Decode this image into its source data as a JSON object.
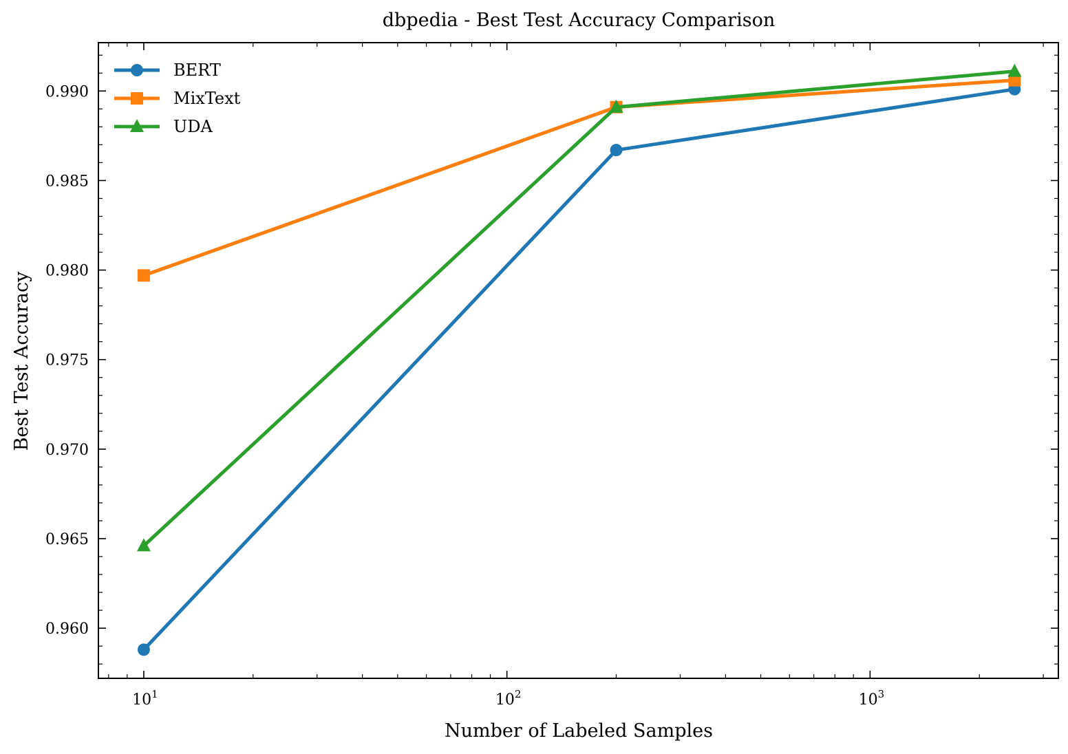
{
  "chart_data": {
    "type": "line",
    "title": "dbpedia - Best Test Accuracy Comparison",
    "xlabel": "Number of Labeled Samples",
    "ylabel": "Best Test Accuracy",
    "xscale": "log",
    "xlim": [
      7.5,
      3300
    ],
    "ylim": [
      0.9572,
      0.9927
    ],
    "x_major_ticks": [
      10,
      100,
      1000
    ],
    "x_tick_labels": [
      {
        "base": "10",
        "exp": "1"
      },
      {
        "base": "10",
        "exp": "2"
      },
      {
        "base": "10",
        "exp": "3"
      }
    ],
    "y_major_ticks": [
      0.96,
      0.965,
      0.97,
      0.975,
      0.98,
      0.985,
      0.99
    ],
    "y_tick_labels": [
      "0.960",
      "0.965",
      "0.970",
      "0.975",
      "0.980",
      "0.985",
      "0.990"
    ],
    "y_minor_step": 0.001,
    "grid": false,
    "legend_position": "top-left",
    "x": [
      10,
      200,
      2500
    ],
    "series": [
      {
        "name": "BERT",
        "values": [
          0.9588,
          0.9867,
          0.9901
        ],
        "color": "#1f77b4",
        "marker": "circle"
      },
      {
        "name": "MixText",
        "values": [
          0.9797,
          0.9891,
          0.9906
        ],
        "color": "#ff7f0e",
        "marker": "square"
      },
      {
        "name": "UDA",
        "values": [
          0.9646,
          0.9891,
          0.9911
        ],
        "color": "#2ca02c",
        "marker": "triangle"
      }
    ]
  }
}
